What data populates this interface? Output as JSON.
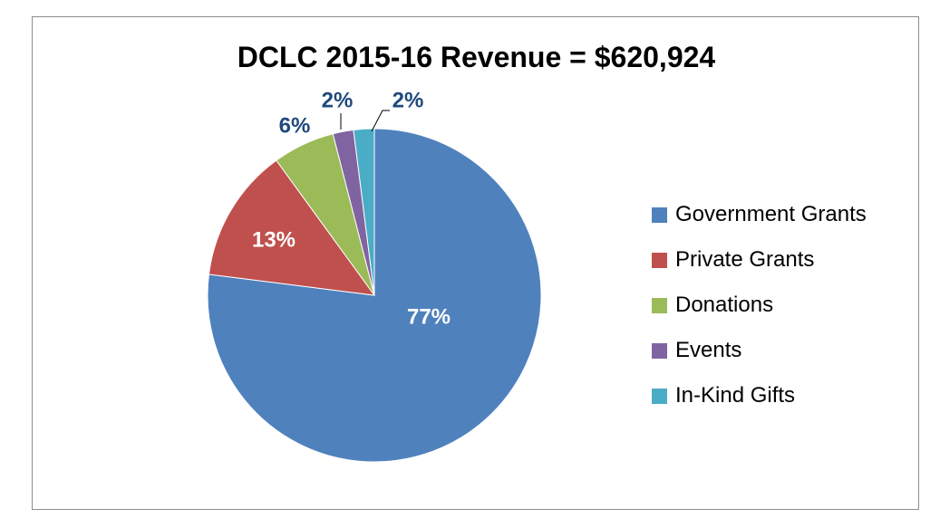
{
  "chart_data": {
    "type": "pie",
    "title": "DCLC 2015-16 Revenue = $620,924",
    "categories": [
      "Government Grants",
      "Private Grants",
      "Donations",
      "Events",
      "In-Kind Gifts"
    ],
    "values": [
      77,
      13,
      6,
      2,
      2
    ],
    "value_labels": [
      "77%",
      "13%",
      "6%",
      "2%",
      "2%"
    ],
    "colors": [
      "#4f81bd",
      "#c0504d",
      "#9bbb59",
      "#8064a2",
      "#4bacc6"
    ],
    "label_colors": [
      "#ffffff",
      "#ffffff",
      "#1f497d",
      "#1f497d",
      "#1f497d"
    ],
    "legend_position": "right",
    "start_angle_deg": 0,
    "direction": "clockwise"
  }
}
